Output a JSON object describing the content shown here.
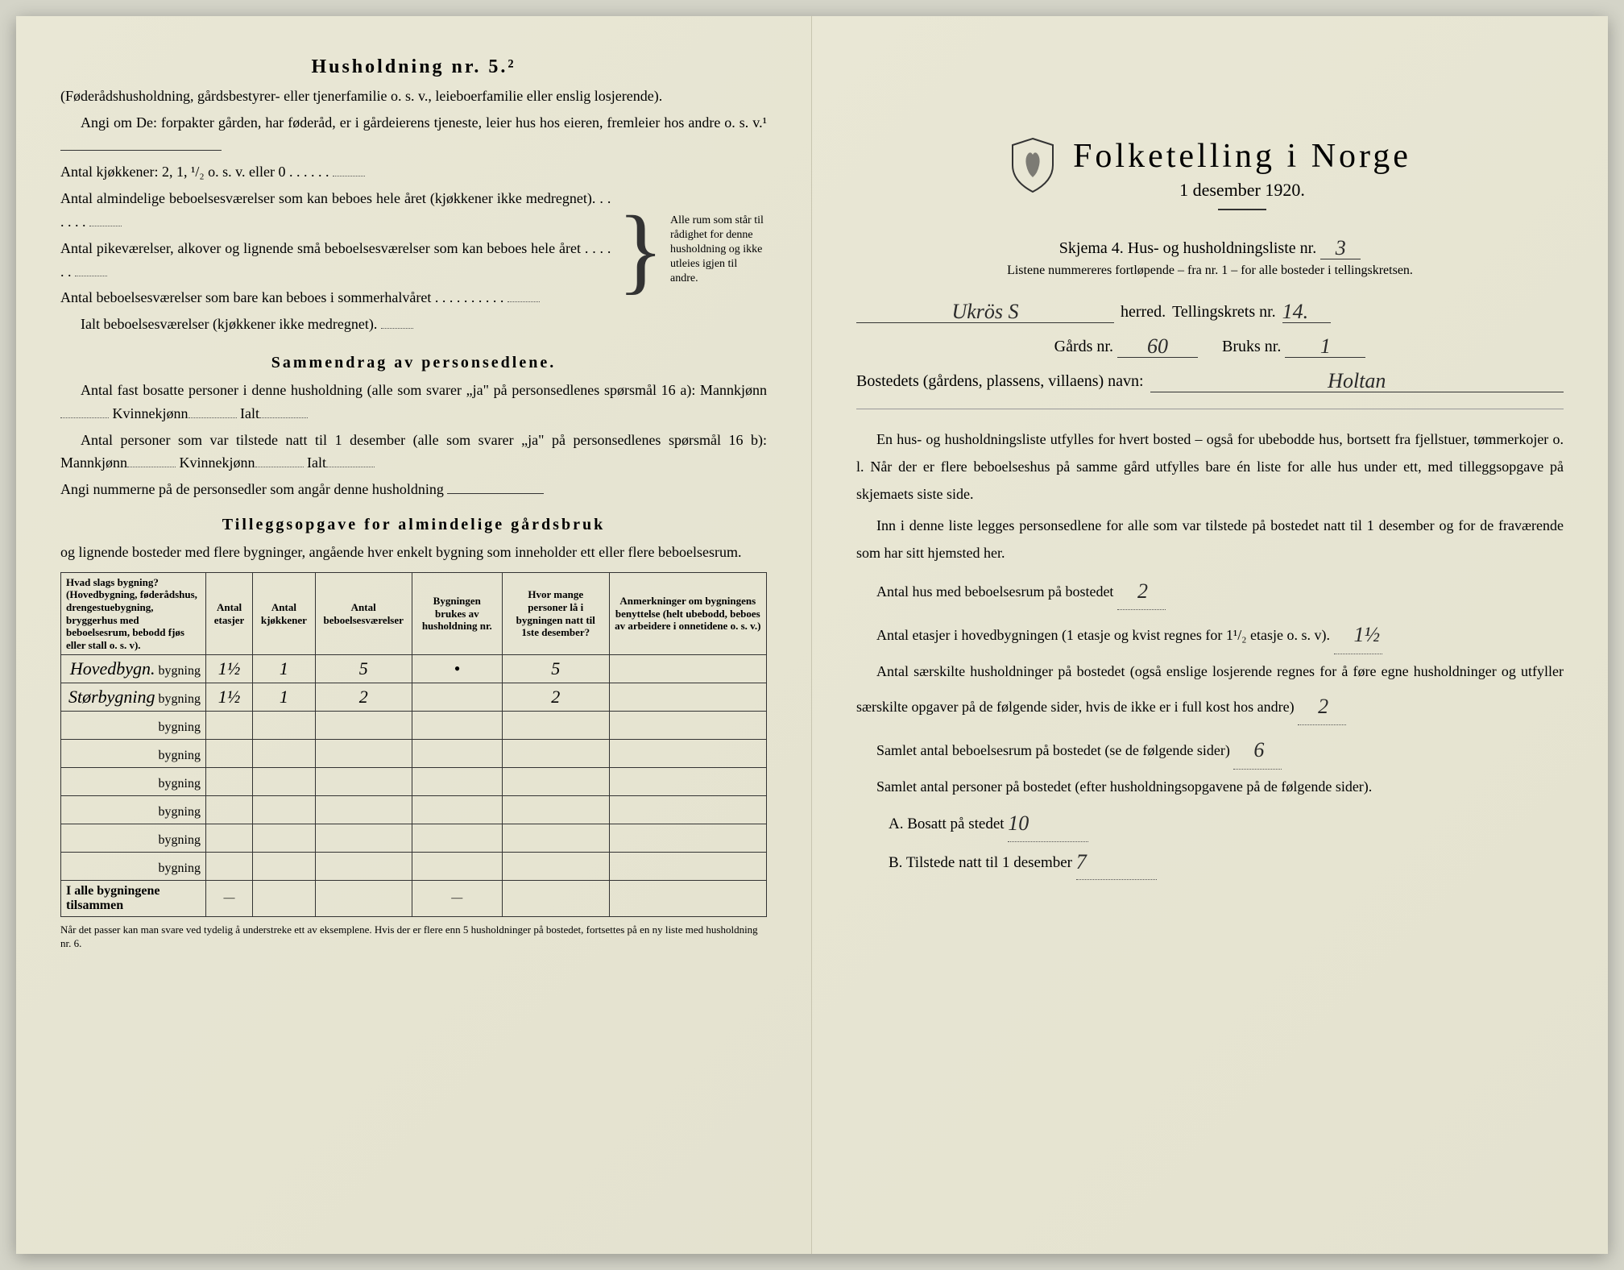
{
  "left": {
    "heading": "Husholdning nr. 5.²",
    "intro1": "(Føderådshusholdning, gårdsbestyrer- eller tjenerfamilie o. s. v., leieboerfamilie eller enslig losjerende).",
    "intro2": "Angi om De: forpakter gården, har føderåd, er i gårdeierens tjeneste, leier hus hos eieren, fremleier hos andre o. s. v.¹",
    "kitchens_label": "Antal kjøkkener: 2, 1, ¹/₂ o. s. v. eller 0",
    "rooms1": "Antal almindelige beboelsesværelser som kan beboes hele året (kjøkkener ikke medregnet).",
    "rooms2": "Antal pikeværelser, alkover og lignende små beboelsesværelser som kan beboes hele året",
    "rooms3": "Antal beboelsesværelser som bare kan beboes i sommerhalvåret",
    "rooms_total": "Ialt beboelsesværelser (kjøkkener ikke medregnet).",
    "brace_note": "Alle rum som står til rådighet for denne husholdning og ikke utleies igjen til andre.",
    "sammendrag_heading": "Sammendrag av personsedlene.",
    "sammendrag1": "Antal fast bosatte personer i denne husholdning (alle som svarer „ja\" på personsedlenes spørsmål 16 a): Mannkjønn",
    "kvinne": "Kvinnekjønn",
    "ialt": "Ialt",
    "sammendrag2": "Antal personer som var tilstede natt til 1 desember (alle som svarer „ja\" på personsedlenes spørsmål 16 b): Mannkjønn",
    "angi_num": "Angi nummerne på de personsedler som angår denne husholdning",
    "tillegg_heading": "Tilleggsopgave for almindelige gårdsbruk",
    "tillegg_sub": "og lignende bosteder med flere bygninger, angående hver enkelt bygning som inneholder ett eller flere beboelsesrum.",
    "table": {
      "headers": [
        "Hvad slags bygning?\n(Hovedbygning, føderådshus, drengestuebygning, bryggerhus med beboelsesrum, bebodd fjøs eller stall o. s. v).",
        "Antal etasjer",
        "Antal kjøkkener",
        "Antal beboelsesværelser",
        "Bygningen brukes av husholdning nr.",
        "Hvor mange personer lå i bygningen natt til 1ste desember?",
        "Anmerkninger om bygningens benyttelse (helt ubebodd, beboes av arbeidere i onnetidene o. s. v.)"
      ],
      "row_label": "bygning",
      "rows": [
        {
          "prefix": "Hovedbygn.",
          "etasjer": "1½",
          "kjokken": "1",
          "vaer": "5",
          "hush": "•",
          "pers": "5",
          "anm": ""
        },
        {
          "prefix": "Størbygning",
          "etasjer": "1½",
          "kjokken": "1",
          "vaer": "2",
          "hush": "",
          "pers": "2",
          "anm": ""
        },
        {
          "prefix": "",
          "etasjer": "",
          "kjokken": "",
          "vaer": "",
          "hush": "",
          "pers": "",
          "anm": ""
        },
        {
          "prefix": "",
          "etasjer": "",
          "kjokken": "",
          "vaer": "",
          "hush": "",
          "pers": "",
          "anm": ""
        },
        {
          "prefix": "",
          "etasjer": "",
          "kjokken": "",
          "vaer": "",
          "hush": "",
          "pers": "",
          "anm": ""
        },
        {
          "prefix": "",
          "etasjer": "",
          "kjokken": "",
          "vaer": "",
          "hush": "",
          "pers": "",
          "anm": ""
        },
        {
          "prefix": "",
          "etasjer": "",
          "kjokken": "",
          "vaer": "",
          "hush": "",
          "pers": "",
          "anm": ""
        },
        {
          "prefix": "",
          "etasjer": "",
          "kjokken": "",
          "vaer": "",
          "hush": "",
          "pers": "",
          "anm": ""
        }
      ],
      "total_label": "I alle bygningene tilsammen",
      "dash": "—"
    },
    "footnote": "Når det passer kan man svare ved tydelig å understreke ett av eksemplene.\nHvis der er flere enn 5 husholdninger på bostedet, fortsettes på en ny liste med husholdning nr. 6."
  },
  "right": {
    "title": "Folketelling i Norge",
    "subtitle": "1 desember 1920.",
    "skjema": "Skjema 4. Hus- og husholdningsliste nr.",
    "skjema_val": "3",
    "listene": "Listene nummereres fortløpende – fra nr. 1 – for alle bosteder i tellingskretsen.",
    "herred_val": "Ukrös S",
    "herred_label": "herred.",
    "tellingskrets_label": "Tellingskrets nr.",
    "tellingskrets_val": "14.",
    "gards_label": "Gårds nr.",
    "gards_val": "60",
    "bruks_label": "Bruks nr.",
    "bruks_val": "1",
    "bosted_label": "Bostedets (gårdens, plassens, villaens) navn:",
    "bosted_val": "Holtan",
    "para1": "En hus- og husholdningsliste utfylles for hvert bosted – også for ubebodde hus, bortsett fra fjellstuer, tømmerkojer o. l. Når der er flere beboelseshus på samme gård utfylles bare én liste for alle hus under ett, med tilleggsopgave på skjemaets siste side.",
    "para2": "Inn i denne liste legges personsedlene for alle som var tilstede på bostedet natt til 1 desember og for de fraværende som har sitt hjemsted her.",
    "q1": "Antal hus med beboelsesrum på bostedet",
    "q1_val": "2",
    "q2a": "Antal etasjer i hovedbygningen (1 etasje og kvist regnes for 1¹/₂ etasje o. s. v).",
    "q2_val": "1½",
    "q3": "Antal særskilte husholdninger på bostedet (også enslige losjerende regnes for å føre egne husholdninger og utfyller særskilte opgaver på de følgende sider, hvis de ikke er i full kost hos andre)",
    "q3_val": "2",
    "q4": "Samlet antal beboelsesrum på bostedet (se de følgende sider)",
    "q4_val": "6",
    "q5": "Samlet antal personer på bostedet (efter husholdningsopgavene på de følgende sider).",
    "qa_label": "A.  Bosatt på stedet",
    "qa_val": "10",
    "qb_label": "B.  Tilstede natt til 1 desember",
    "qb_val": "7"
  },
  "colors": {
    "paper": "#e8e6d4",
    "ink": "#2a2a2a",
    "rule": "#333333"
  }
}
